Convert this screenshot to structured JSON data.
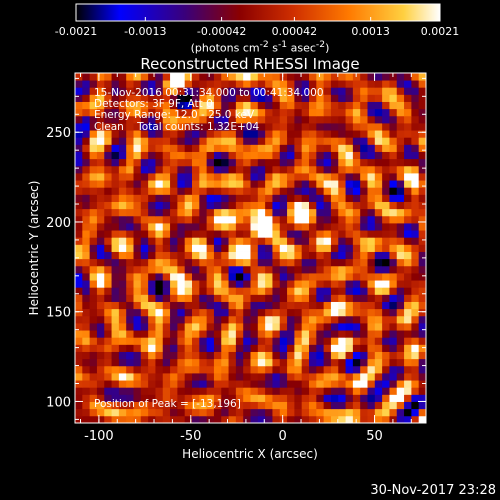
{
  "chart_data": {
    "type": "heatmap",
    "title": "Reconstructed RHESSI Image",
    "xlabel": "Heliocentric X (arcsec)",
    "ylabel": "Heliocentric Y (arcsec)",
    "xlim": [
      -113,
      78
    ],
    "ylim": [
      88,
      283
    ],
    "x_ticks": [
      -100,
      -50,
      0,
      50
    ],
    "y_ticks": [
      100,
      150,
      200,
      250
    ],
    "colorbar": {
      "range": [
        -0.0021,
        0.0021
      ],
      "tick_values": [
        -0.0021,
        -0.0013,
        -0.00042,
        0.00042,
        0.0013,
        0.0021
      ],
      "tick_labels": [
        "-0.0021",
        "-0.0013",
        "-0.00042",
        "0.00042",
        "0.0013",
        "0.0021"
      ],
      "label": "(photons cm<sup>-2</sup> s<sup>-1</sup> asec<sup>-2</sup>)",
      "colors": [
        "#000000",
        "#0000ff",
        "#3a007a",
        "#8b0000",
        "#d03000",
        "#ff7a00",
        "#ffd040",
        "#ffffff"
      ]
    },
    "info_lines": [
      "15-Nov-2016 00:31:34.000 to 00:41:34.000",
      "Detectors: 3F 9F, Att 0",
      "Energy Range: 12.0 - 25.0 keV",
      "Clean    Total counts: 1.32E+04"
    ],
    "peak_label": "Position of Peak = [-13,196]",
    "peak": [
      -13,
      196
    ],
    "sources": [
      {
        "x": -13,
        "y": 196,
        "amp": 0.0021,
        "sigma": 6
      },
      {
        "x": -20,
        "y": 207,
        "amp": 0.0016,
        "sigma": 4
      },
      {
        "x": 8,
        "y": 199,
        "amp": 0.0015,
        "sigma": 5
      },
      {
        "x": -52,
        "y": 172,
        "amp": 0.0015,
        "sigma": 5
      },
      {
        "x": -32,
        "y": 188,
        "amp": 0.0009,
        "sigma": 6
      },
      {
        "x": -90,
        "y": 218,
        "amp": 0.0007,
        "sigma": 5
      },
      {
        "x": 30,
        "y": 230,
        "amp": 0.0006,
        "sigma": 5
      },
      {
        "x": -70,
        "y": 140,
        "amp": 0.0006,
        "sigma": 6
      },
      {
        "x": 20,
        "y": 150,
        "amp": 0.0006,
        "sigma": 6
      }
    ]
  },
  "footer": {
    "timestamp": "30-Nov-2017 23:28"
  }
}
